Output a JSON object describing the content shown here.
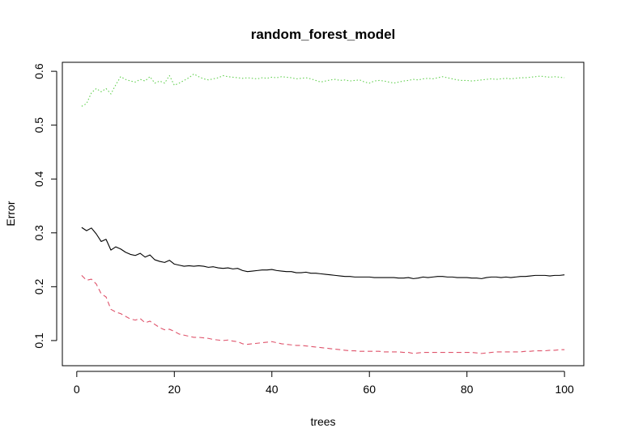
{
  "chart_data": {
    "type": "line",
    "title": "random_forest_model",
    "xlabel": "trees",
    "ylabel": "Error",
    "xlim": [
      -2.96,
      103.96
    ],
    "ylim": [
      0.0533,
      0.6167
    ],
    "xticks": [
      0,
      20,
      40,
      60,
      80,
      100
    ],
    "yticks": [
      0.1,
      0.2,
      0.3,
      0.4,
      0.5,
      0.6
    ],
    "grid": false,
    "legend": "none",
    "x": [
      1,
      2,
      3,
      4,
      5,
      6,
      7,
      8,
      9,
      10,
      11,
      12,
      13,
      14,
      15,
      16,
      17,
      18,
      19,
      20,
      21,
      22,
      23,
      24,
      25,
      26,
      27,
      28,
      29,
      30,
      31,
      32,
      33,
      34,
      35,
      36,
      37,
      38,
      39,
      40,
      41,
      42,
      43,
      44,
      45,
      46,
      47,
      48,
      49,
      50,
      51,
      52,
      53,
      54,
      55,
      56,
      57,
      58,
      59,
      60,
      61,
      62,
      63,
      64,
      65,
      66,
      67,
      68,
      69,
      70,
      71,
      72,
      73,
      74,
      75,
      76,
      77,
      78,
      79,
      80,
      81,
      82,
      83,
      84,
      85,
      86,
      87,
      88,
      89,
      90,
      91,
      92,
      93,
      94,
      95,
      96,
      97,
      98,
      99,
      100
    ],
    "series": [
      {
        "color": "#000000",
        "dash": "solid",
        "values": [
          0.31,
          0.304,
          0.309,
          0.298,
          0.284,
          0.288,
          0.268,
          0.274,
          0.27,
          0.264,
          0.26,
          0.258,
          0.262,
          0.255,
          0.259,
          0.25,
          0.247,
          0.245,
          0.249,
          0.242,
          0.24,
          0.238,
          0.239,
          0.238,
          0.239,
          0.238,
          0.236,
          0.237,
          0.235,
          0.234,
          0.235,
          0.233,
          0.234,
          0.23,
          0.228,
          0.229,
          0.23,
          0.231,
          0.231,
          0.232,
          0.23,
          0.229,
          0.228,
          0.228,
          0.226,
          0.226,
          0.227,
          0.225,
          0.225,
          0.224,
          0.223,
          0.222,
          0.221,
          0.22,
          0.219,
          0.219,
          0.218,
          0.218,
          0.218,
          0.218,
          0.217,
          0.217,
          0.217,
          0.217,
          0.217,
          0.216,
          0.216,
          0.217,
          0.215,
          0.216,
          0.218,
          0.217,
          0.218,
          0.219,
          0.219,
          0.218,
          0.218,
          0.217,
          0.217,
          0.217,
          0.216,
          0.216,
          0.215,
          0.217,
          0.218,
          0.218,
          0.217,
          0.218,
          0.217,
          0.218,
          0.219,
          0.219,
          0.22,
          0.221,
          0.221,
          0.221,
          0.22,
          0.221,
          0.221,
          0.222
        ]
      },
      {
        "color": "#df536b",
        "dash": "dashed",
        "values": [
          0.221,
          0.212,
          0.214,
          0.205,
          0.187,
          0.181,
          0.158,
          0.153,
          0.15,
          0.145,
          0.14,
          0.138,
          0.141,
          0.133,
          0.136,
          0.13,
          0.124,
          0.12,
          0.121,
          0.117,
          0.112,
          0.11,
          0.108,
          0.106,
          0.106,
          0.105,
          0.104,
          0.102,
          0.101,
          0.1,
          0.101,
          0.099,
          0.098,
          0.094,
          0.093,
          0.094,
          0.095,
          0.096,
          0.097,
          0.098,
          0.096,
          0.094,
          0.093,
          0.092,
          0.091,
          0.091,
          0.09,
          0.089,
          0.088,
          0.087,
          0.086,
          0.085,
          0.084,
          0.083,
          0.082,
          0.081,
          0.081,
          0.08,
          0.08,
          0.08,
          0.08,
          0.08,
          0.079,
          0.079,
          0.079,
          0.079,
          0.078,
          0.078,
          0.076,
          0.077,
          0.078,
          0.078,
          0.078,
          0.078,
          0.078,
          0.078,
          0.078,
          0.078,
          0.078,
          0.078,
          0.078,
          0.077,
          0.076,
          0.077,
          0.078,
          0.079,
          0.079,
          0.079,
          0.079,
          0.079,
          0.079,
          0.08,
          0.08,
          0.081,
          0.081,
          0.081,
          0.082,
          0.082,
          0.083,
          0.083
        ]
      },
      {
        "color": "#61d04f",
        "dash": "dotted",
        "values": [
          0.535,
          0.54,
          0.56,
          0.568,
          0.562,
          0.568,
          0.558,
          0.575,
          0.59,
          0.585,
          0.582,
          0.58,
          0.585,
          0.582,
          0.59,
          0.578,
          0.582,
          0.578,
          0.592,
          0.574,
          0.578,
          0.583,
          0.588,
          0.595,
          0.59,
          0.586,
          0.584,
          0.586,
          0.588,
          0.592,
          0.59,
          0.589,
          0.588,
          0.587,
          0.588,
          0.587,
          0.586,
          0.588,
          0.587,
          0.589,
          0.588,
          0.59,
          0.589,
          0.588,
          0.586,
          0.587,
          0.588,
          0.586,
          0.583,
          0.58,
          0.582,
          0.584,
          0.585,
          0.583,
          0.584,
          0.582,
          0.583,
          0.584,
          0.58,
          0.578,
          0.582,
          0.583,
          0.582,
          0.58,
          0.578,
          0.58,
          0.582,
          0.583,
          0.585,
          0.584,
          0.586,
          0.587,
          0.586,
          0.588,
          0.59,
          0.588,
          0.586,
          0.584,
          0.583,
          0.583,
          0.582,
          0.583,
          0.584,
          0.585,
          0.586,
          0.585,
          0.586,
          0.587,
          0.586,
          0.587,
          0.588,
          0.588,
          0.589,
          0.59,
          0.591,
          0.59,
          0.589,
          0.59,
          0.589,
          0.588
        ]
      }
    ]
  }
}
